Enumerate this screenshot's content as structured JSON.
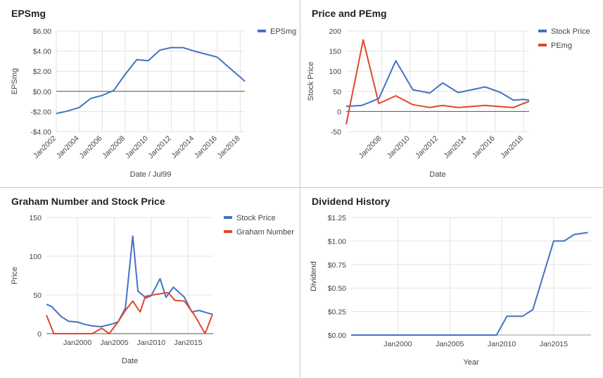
{
  "colors": {
    "blue": "#4472c4",
    "red": "#e0472b",
    "grid": "#e3e3e3",
    "zero": "#555555",
    "text": "#444444",
    "title": "#222222"
  },
  "chart_data": [
    {
      "type": "line",
      "title": "EPSmg",
      "xlabel": "Date / Jul99",
      "ylabel": "EPSmg",
      "x_ticks": [
        2002,
        2004,
        2006,
        2008,
        2010,
        2012,
        2014,
        2016,
        2018
      ],
      "x_tick_labels": [
        "Jan2002",
        "Jan2004",
        "Jan2006",
        "Jan2008",
        "Jan2010",
        "Jan2012",
        "Jan2014",
        "Jan2016",
        "Jan2018"
      ],
      "xlim": [
        2002,
        2018.4
      ],
      "ylim": [
        -4,
        6
      ],
      "y_ticks": [
        -4,
        -2,
        0,
        2,
        4,
        6
      ],
      "y_tick_labels": [
        "-$4.00",
        "-$2.00",
        "$0.00",
        "$2.00",
        "$4.00",
        "$6.00"
      ],
      "legend_position": "right",
      "zero_line": true,
      "series": [
        {
          "name": "EPSmg",
          "color": "#4472c4",
          "x": [
            2002,
            2003,
            2004,
            2005,
            2006,
            2007,
            2008,
            2009,
            2010,
            2011,
            2012,
            2013,
            2014,
            2015,
            2016,
            2017,
            2018,
            2018.4
          ],
          "y": [
            -2.2,
            -1.95,
            -1.6,
            -0.7,
            -0.4,
            0.1,
            1.7,
            3.15,
            3.05,
            4.1,
            4.35,
            4.35,
            4.0,
            3.7,
            3.4,
            2.4,
            1.4,
            1.0
          ]
        }
      ]
    },
    {
      "type": "line",
      "title": "Price and PEmg",
      "xlabel": "Date",
      "ylabel": "Stock Price",
      "x_ticks": [
        2008,
        2010,
        2012,
        2014,
        2016,
        2018
      ],
      "x_tick_labels": [
        "Jan2008",
        "Jan2010",
        "Jan2012",
        "Jan2014",
        "Jan2016",
        "Jan2018"
      ],
      "xlim": [
        2005.5,
        2018.4
      ],
      "ylim": [
        -50,
        200
      ],
      "y_ticks": [
        -50,
        0,
        50,
        100,
        150,
        200
      ],
      "y_tick_labels": [
        "-50",
        "0",
        "50",
        "100",
        "150",
        "200"
      ],
      "legend_position": "right",
      "zero_line": true,
      "series": [
        {
          "name": "Stock Price",
          "color": "#4472c4",
          "x": [
            2005.5,
            2006.6,
            2007.8,
            2009.0,
            2010.2,
            2011.4,
            2012.3,
            2013.4,
            2014.5,
            2015.3,
            2016.4,
            2017.3,
            2018.0,
            2018.4
          ],
          "y": [
            13,
            15,
            32,
            126,
            54,
            46,
            71,
            47,
            55,
            61,
            47,
            28,
            30,
            28
          ]
        },
        {
          "name": "PEmg",
          "color": "#e0472b",
          "x": [
            2005.5,
            2006.7,
            2007.8,
            2009.0,
            2010.2,
            2011.4,
            2012.3,
            2013.4,
            2014.5,
            2015.3,
            2016.4,
            2017.3,
            2018.0,
            2018.4
          ],
          "y": [
            -32,
            178,
            20,
            39,
            17,
            10,
            15,
            10,
            13,
            15,
            12,
            10,
            20,
            25
          ]
        }
      ]
    },
    {
      "type": "line",
      "title": "Graham Number and Stock Price",
      "xlabel": "Date",
      "ylabel": "Price",
      "x_ticks": [
        2000,
        2005,
        2010,
        2015
      ],
      "x_tick_labels": [
        "Jan2000",
        "Jan2005",
        "Jan2010",
        "Jan2015"
      ],
      "xlim": [
        1995.8,
        2018.4
      ],
      "ylim": [
        0,
        150
      ],
      "y_ticks": [
        0,
        50,
        100,
        150
      ],
      "y_tick_labels": [
        "0",
        "50",
        "100",
        "150"
      ],
      "legend_position": "right",
      "zero_line": true,
      "series": [
        {
          "name": "Stock Price",
          "color": "#4472c4",
          "x": [
            1995.8,
            1996.5,
            1997.8,
            1998.8,
            2000,
            2001,
            2002,
            2003.2,
            2004.5,
            2005.5,
            2006.5,
            2007.5,
            2008.2,
            2009.3,
            2010,
            2011.2,
            2012,
            2013,
            2014.5,
            2015.5,
            2016.5,
            2017.5,
            2018.3
          ],
          "y": [
            38,
            35,
            22,
            16,
            15,
            12,
            10,
            9,
            12,
            15,
            33,
            126,
            55,
            46,
            49,
            71,
            47,
            60,
            47,
            28,
            30,
            27,
            25
          ]
        },
        {
          "name": "Graham Number",
          "color": "#e0472b",
          "x": [
            1995.8,
            1996.8,
            1998.5,
            2000,
            2002,
            2003.3,
            2004.3,
            2005.5,
            2006.5,
            2007.5,
            2008.5,
            2009.2,
            2010.2,
            2011.5,
            2012.3,
            2013.2,
            2014.5,
            2015.8,
            2017.3,
            2018.3
          ],
          "y": [
            24,
            0,
            0,
            0,
            0,
            7,
            0,
            15,
            30,
            42,
            28,
            48,
            50,
            52,
            53,
            43,
            42,
            25,
            0,
            25
          ]
        }
      ]
    },
    {
      "type": "line",
      "title": "Dividend History",
      "xlabel": "Year",
      "ylabel": "Dividend",
      "x_ticks": [
        2000,
        2005,
        2010,
        2015
      ],
      "x_tick_labels": [
        "Jan2000",
        "Jan2005",
        "Jan2010",
        "Jan2015"
      ],
      "xlim": [
        1995.5,
        2018.6
      ],
      "ylim": [
        0,
        1.25
      ],
      "y_ticks": [
        0,
        0.25,
        0.5,
        0.75,
        1.0,
        1.25
      ],
      "y_tick_labels": [
        "$0.00",
        "$0.25",
        "$0.50",
        "$0.75",
        "$1.00",
        "$1.25"
      ],
      "legend_position": "none",
      "zero_line": false,
      "series": [
        {
          "color": "#4472c4",
          "x": [
            1995.5,
            2009.5,
            2010.5,
            2012,
            2013,
            2015,
            2016,
            2017,
            2018.3
          ],
          "y": [
            0,
            0,
            0.2,
            0.2,
            0.27,
            1.0,
            1.0,
            1.07,
            1.09
          ]
        }
      ]
    }
  ]
}
